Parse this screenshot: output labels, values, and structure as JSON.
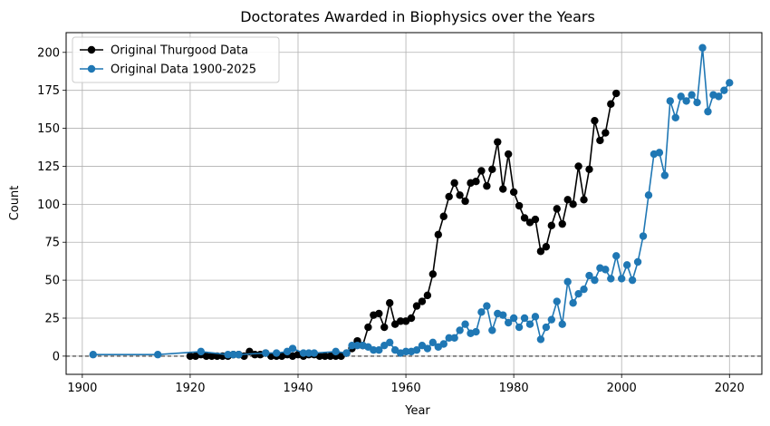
{
  "chart_data": {
    "type": "line",
    "title": "Doctorates Awarded in Biophysics over the Years",
    "xlabel": "Year",
    "ylabel": "Count",
    "xlim": [
      1897,
      2026
    ],
    "ylim": [
      -12,
      213
    ],
    "xticks": [
      1900,
      1920,
      1940,
      1960,
      1980,
      2000,
      2020
    ],
    "yticks": [
      0,
      25,
      50,
      75,
      100,
      125,
      150,
      175,
      200
    ],
    "grid": true,
    "legend_position": "top-left",
    "reference_line": {
      "y": 0,
      "style": "dashed"
    },
    "series": [
      {
        "name": "Original Thurgood Data",
        "color": "#000000",
        "x": [
          1920,
          1921,
          1922,
          1923,
          1924,
          1925,
          1926,
          1927,
          1928,
          1929,
          1930,
          1931,
          1932,
          1933,
          1934,
          1935,
          1936,
          1937,
          1938,
          1939,
          1940,
          1941,
          1942,
          1943,
          1944,
          1945,
          1946,
          1947,
          1948,
          1949,
          1950,
          1951,
          1952,
          1953,
          1954,
          1955,
          1956,
          1957,
          1958,
          1959,
          1960,
          1961,
          1962,
          1963,
          1964,
          1965,
          1966,
          1967,
          1968,
          1969,
          1970,
          1971,
          1972,
          1973,
          1974,
          1975,
          1976,
          1977,
          1978,
          1979,
          1980,
          1981,
          1982,
          1983,
          1984,
          1985,
          1986,
          1987,
          1988,
          1989,
          1990,
          1991,
          1992,
          1993,
          1994,
          1995,
          1996,
          1997,
          1998,
          1999
        ],
        "values": [
          0,
          0,
          1,
          0,
          0,
          0,
          0,
          0,
          1,
          1,
          0,
          3,
          1,
          1,
          2,
          0,
          0,
          0,
          1,
          0,
          1,
          0,
          1,
          1,
          0,
          0,
          0,
          0,
          0,
          2,
          5,
          10,
          7,
          19,
          27,
          28,
          19,
          35,
          21,
          23,
          23,
          25,
          33,
          36,
          40,
          54,
          80,
          92,
          105,
          114,
          106,
          102,
          114,
          115,
          122,
          112,
          123,
          141,
          110,
          133,
          108,
          99,
          91,
          88,
          90,
          69,
          72,
          86,
          97,
          87,
          103,
          100,
          125,
          103,
          123,
          155,
          142,
          147,
          166,
          173
        ]
      },
      {
        "name": "Original Data 1900-2025",
        "color": "#1f77b4",
        "x": [
          1902,
          1914,
          1922,
          1927,
          1928,
          1929,
          1934,
          1936,
          1938,
          1939,
          1941,
          1942,
          1943,
          1947,
          1949,
          1950,
          1951,
          1952,
          1953,
          1954,
          1955,
          1956,
          1957,
          1958,
          1959,
          1960,
          1961,
          1962,
          1963,
          1964,
          1965,
          1966,
          1967,
          1968,
          1969,
          1970,
          1971,
          1972,
          1973,
          1974,
          1975,
          1976,
          1977,
          1978,
          1979,
          1980,
          1981,
          1982,
          1983,
          1984,
          1985,
          1986,
          1987,
          1988,
          1989,
          1990,
          1991,
          1992,
          1993,
          1994,
          1995,
          1996,
          1997,
          1998,
          1999,
          2000,
          2001,
          2002,
          2003,
          2004,
          2005,
          2006,
          2007,
          2008,
          2009,
          2010,
          2011,
          2012,
          2013,
          2014,
          2015,
          2016,
          2017,
          2018,
          2019,
          2020
        ],
        "values": [
          1,
          1,
          3,
          1,
          1,
          1,
          2,
          2,
          3,
          5,
          2,
          2,
          2,
          3,
          2,
          7,
          7,
          7,
          6,
          4,
          4,
          7,
          9,
          4,
          2,
          3,
          3,
          4,
          7,
          5,
          9,
          6,
          8,
          12,
          12,
          17,
          21,
          15,
          16,
          29,
          33,
          17,
          28,
          27,
          22,
          25,
          19,
          25,
          21,
          26,
          11,
          19,
          24,
          36,
          21,
          49,
          35,
          41,
          44,
          53,
          50,
          58,
          57,
          51,
          66,
          51,
          60,
          50,
          62,
          79,
          106,
          133,
          134,
          119,
          168,
          157,
          171,
          168,
          172,
          167,
          203,
          161,
          172,
          171,
          175,
          180
        ]
      }
    ]
  }
}
